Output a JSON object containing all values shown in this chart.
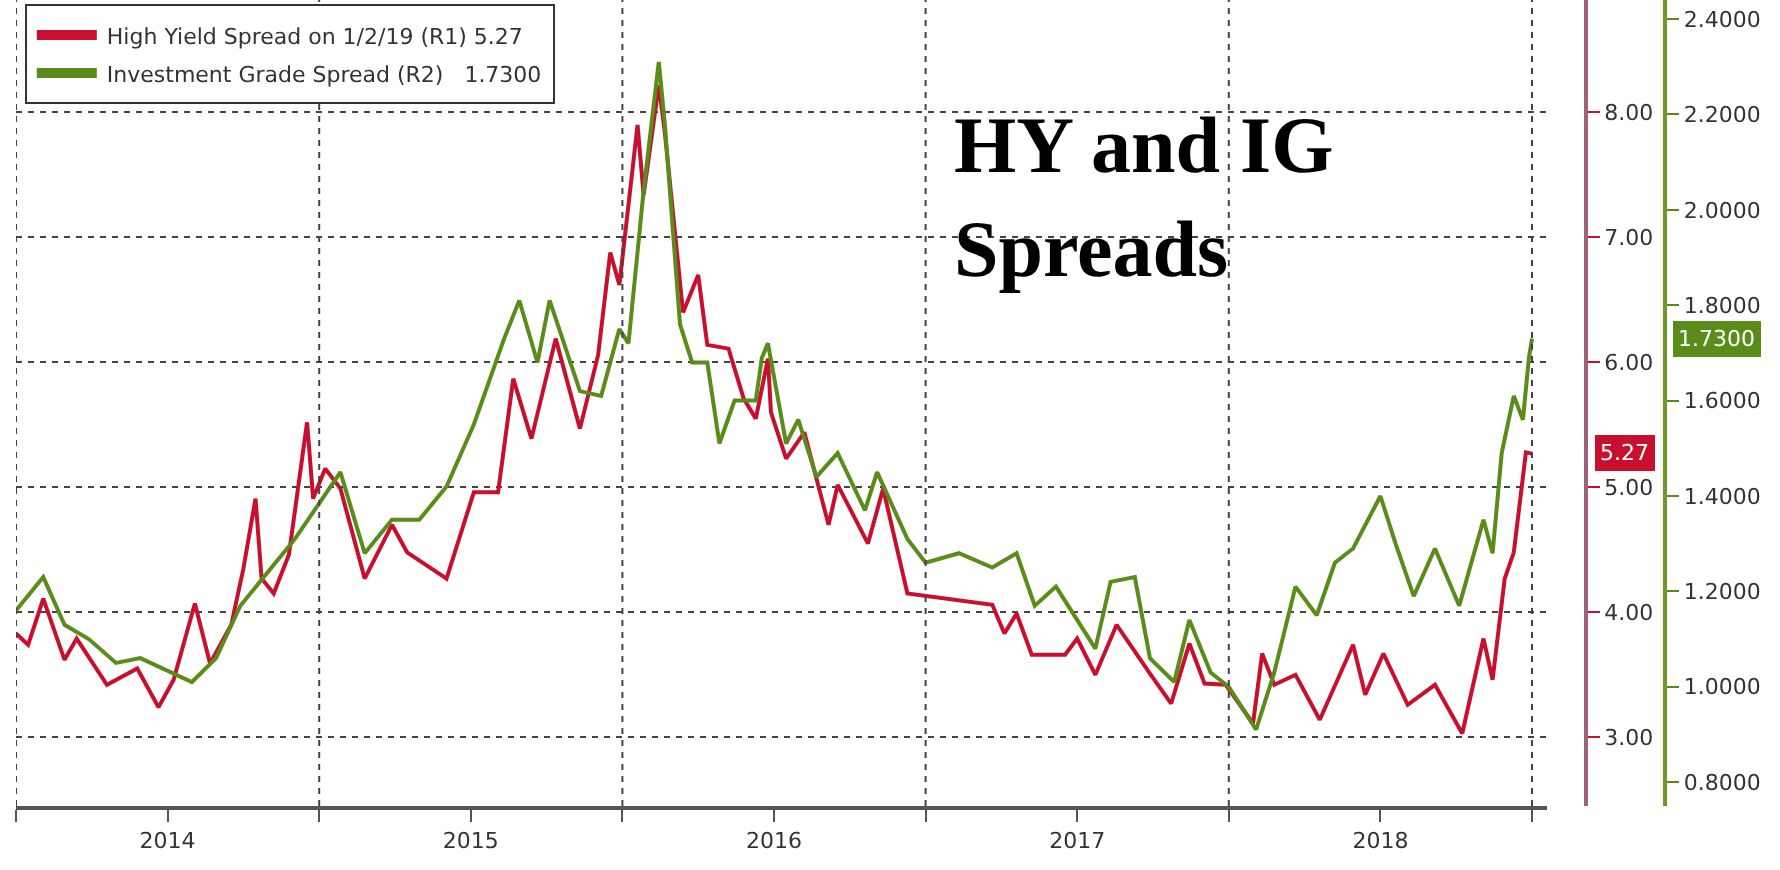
{
  "chart_data": {
    "type": "line",
    "title": "HY and IG Spreads",
    "xlim": [
      2014.0,
      2019.05
    ],
    "xticks": [
      {
        "value": 2014.0,
        "label": null
      },
      {
        "value": 2014.5,
        "label": "2014"
      },
      {
        "value": 2015.0,
        "label": null
      },
      {
        "value": 2015.5,
        "label": "2015"
      },
      {
        "value": 2016.0,
        "label": null
      },
      {
        "value": 2016.5,
        "label": "2016"
      },
      {
        "value": 2017.0,
        "label": null
      },
      {
        "value": 2017.5,
        "label": "2017"
      },
      {
        "value": 2018.0,
        "label": null
      },
      {
        "value": 2018.5,
        "label": "2018"
      },
      {
        "value": 2019.0,
        "label": null
      }
    ],
    "ylim": [
      2.45,
      8.9
    ],
    "yticks": [
      {
        "value": 3,
        "label": "3.00"
      },
      {
        "value": 4,
        "label": "4.00"
      },
      {
        "value": 5,
        "label": "5.00"
      },
      {
        "value": 6,
        "label": "6.00"
      },
      {
        "value": 7,
        "label": "7.00"
      },
      {
        "value": 8,
        "label": "8.00"
      }
    ],
    "y2lim": [
      0.75,
      2.44
    ],
    "y2ticks": [
      {
        "value": 0.8,
        "label": "0.8000"
      },
      {
        "value": 1.0,
        "label": "1.0000"
      },
      {
        "value": 1.2,
        "label": "1.2000"
      },
      {
        "value": 1.4,
        "label": "1.4000"
      },
      {
        "value": 1.6,
        "label": "1.6000"
      },
      {
        "value": 1.8,
        "label": "1.8000"
      },
      {
        "value": 2.0,
        "label": "2.0000"
      },
      {
        "value": 2.2,
        "label": "2.2000"
      },
      {
        "value": 2.4,
        "label": "2.4000"
      }
    ],
    "grid": true,
    "legend": "top left",
    "annotations": [
      "5.27",
      "1.7300"
    ],
    "series": [
      {
        "name": "High Yield Spread on 1/2/19 (R1) 5.27",
        "color": "#c8102e",
        "axis": "y",
        "x": [
          2014.0,
          2014.04,
          2014.09,
          2014.16,
          2014.2,
          2014.3,
          2014.4,
          2014.47,
          2014.52,
          2014.59,
          2014.64,
          2014.71,
          2014.75,
          2014.79,
          2014.81,
          2014.85,
          2014.9,
          2014.96,
          2014.98,
          2015.02,
          2015.07,
          2015.15,
          2015.24,
          2015.29,
          2015.42,
          2015.51,
          2015.59,
          2015.64,
          2015.7,
          2015.78,
          2015.86,
          2015.92,
          2015.96,
          2015.99,
          2016.05,
          2016.07,
          2016.12,
          2016.14,
          2016.2,
          2016.25,
          2016.28,
          2016.35,
          2016.4,
          2016.44,
          2016.48,
          2016.49,
          2016.54,
          2016.6,
          2016.68,
          2016.71,
          2016.81,
          2016.86,
          2016.94,
          2017.22,
          2017.26,
          2017.3,
          2017.35,
          2017.46,
          2017.5,
          2017.56,
          2017.63,
          2017.74,
          2017.81,
          2017.87,
          2017.92,
          2017.99,
          2018.08,
          2018.11,
          2018.15,
          2018.22,
          2018.3,
          2018.41,
          2018.45,
          2018.51,
          2018.59,
          2018.68,
          2018.77,
          2018.84,
          2018.87,
          2018.91,
          2018.94,
          2018.98,
          2019.0
        ],
        "values": [
          3.83,
          3.74,
          4.11,
          3.62,
          3.79,
          3.42,
          3.55,
          3.24,
          3.46,
          4.07,
          3.59,
          3.9,
          4.35,
          4.91,
          4.27,
          4.15,
          4.46,
          5.52,
          4.91,
          5.15,
          4.99,
          4.27,
          4.7,
          4.48,
          4.27,
          4.96,
          4.96,
          5.87,
          5.39,
          6.19,
          5.47,
          6.06,
          6.88,
          6.62,
          7.9,
          7.34,
          8.22,
          7.84,
          6.4,
          6.7,
          6.14,
          6.11,
          5.71,
          5.55,
          6.03,
          5.6,
          5.23,
          5.44,
          4.7,
          5.02,
          4.55,
          4.99,
          4.15,
          4.06,
          3.83,
          3.99,
          3.66,
          3.66,
          3.79,
          3.5,
          3.9,
          3.51,
          3.27,
          3.75,
          3.43,
          3.42,
          3.11,
          3.67,
          3.42,
          3.5,
          3.14,
          3.74,
          3.34,
          3.67,
          3.26,
          3.42,
          3.03,
          3.79,
          3.46,
          4.27,
          4.48,
          5.28,
          5.27
        ]
      },
      {
        "name": "Investment Grade Spread (R2)   1.7300",
        "color": "#5a8c1a",
        "axis": "y2",
        "x": [
          2014.0,
          2014.09,
          2014.16,
          2014.24,
          2014.33,
          2014.41,
          2014.58,
          2014.66,
          2014.74,
          2014.92,
          2015.07,
          2015.15,
          2015.24,
          2015.33,
          2015.42,
          2015.51,
          2015.61,
          2015.66,
          2015.72,
          2015.76,
          2015.86,
          2015.93,
          2015.99,
          2016.02,
          2016.07,
          2016.12,
          2016.14,
          2016.19,
          2016.23,
          2016.28,
          2016.32,
          2016.37,
          2016.44,
          2016.46,
          2016.48,
          2016.54,
          2016.58,
          2016.64,
          2016.71,
          2016.8,
          2016.84,
          2016.94,
          2017.0,
          2017.11,
          2017.22,
          2017.3,
          2017.36,
          2017.43,
          2017.56,
          2017.61,
          2017.69,
          2017.74,
          2017.82,
          2017.87,
          2017.94,
          2018.0,
          2018.09,
          2018.15,
          2018.22,
          2018.29,
          2018.35,
          2018.41,
          2018.5,
          2018.55,
          2018.61,
          2018.68,
          2018.76,
          2018.84,
          2018.87,
          2018.9,
          2018.94,
          2018.97,
          2018.99,
          2019.0
        ],
        "values": [
          1.16,
          1.23,
          1.13,
          1.1,
          1.05,
          1.06,
          1.01,
          1.06,
          1.17,
          1.31,
          1.45,
          1.28,
          1.35,
          1.35,
          1.42,
          1.55,
          1.73,
          1.81,
          1.68,
          1.81,
          1.62,
          1.61,
          1.75,
          1.72,
          2.04,
          2.31,
          2.18,
          1.76,
          1.68,
          1.68,
          1.51,
          1.6,
          1.6,
          1.69,
          1.72,
          1.51,
          1.56,
          1.44,
          1.49,
          1.37,
          1.45,
          1.31,
          1.26,
          1.28,
          1.25,
          1.28,
          1.17,
          1.21,
          1.08,
          1.22,
          1.23,
          1.06,
          1.01,
          1.14,
          1.03,
          1.0,
          0.91,
          1.03,
          1.21,
          1.15,
          1.26,
          1.29,
          1.4,
          1.3,
          1.19,
          1.29,
          1.17,
          1.35,
          1.28,
          1.49,
          1.61,
          1.56,
          1.69,
          1.73
        ]
      }
    ]
  }
}
